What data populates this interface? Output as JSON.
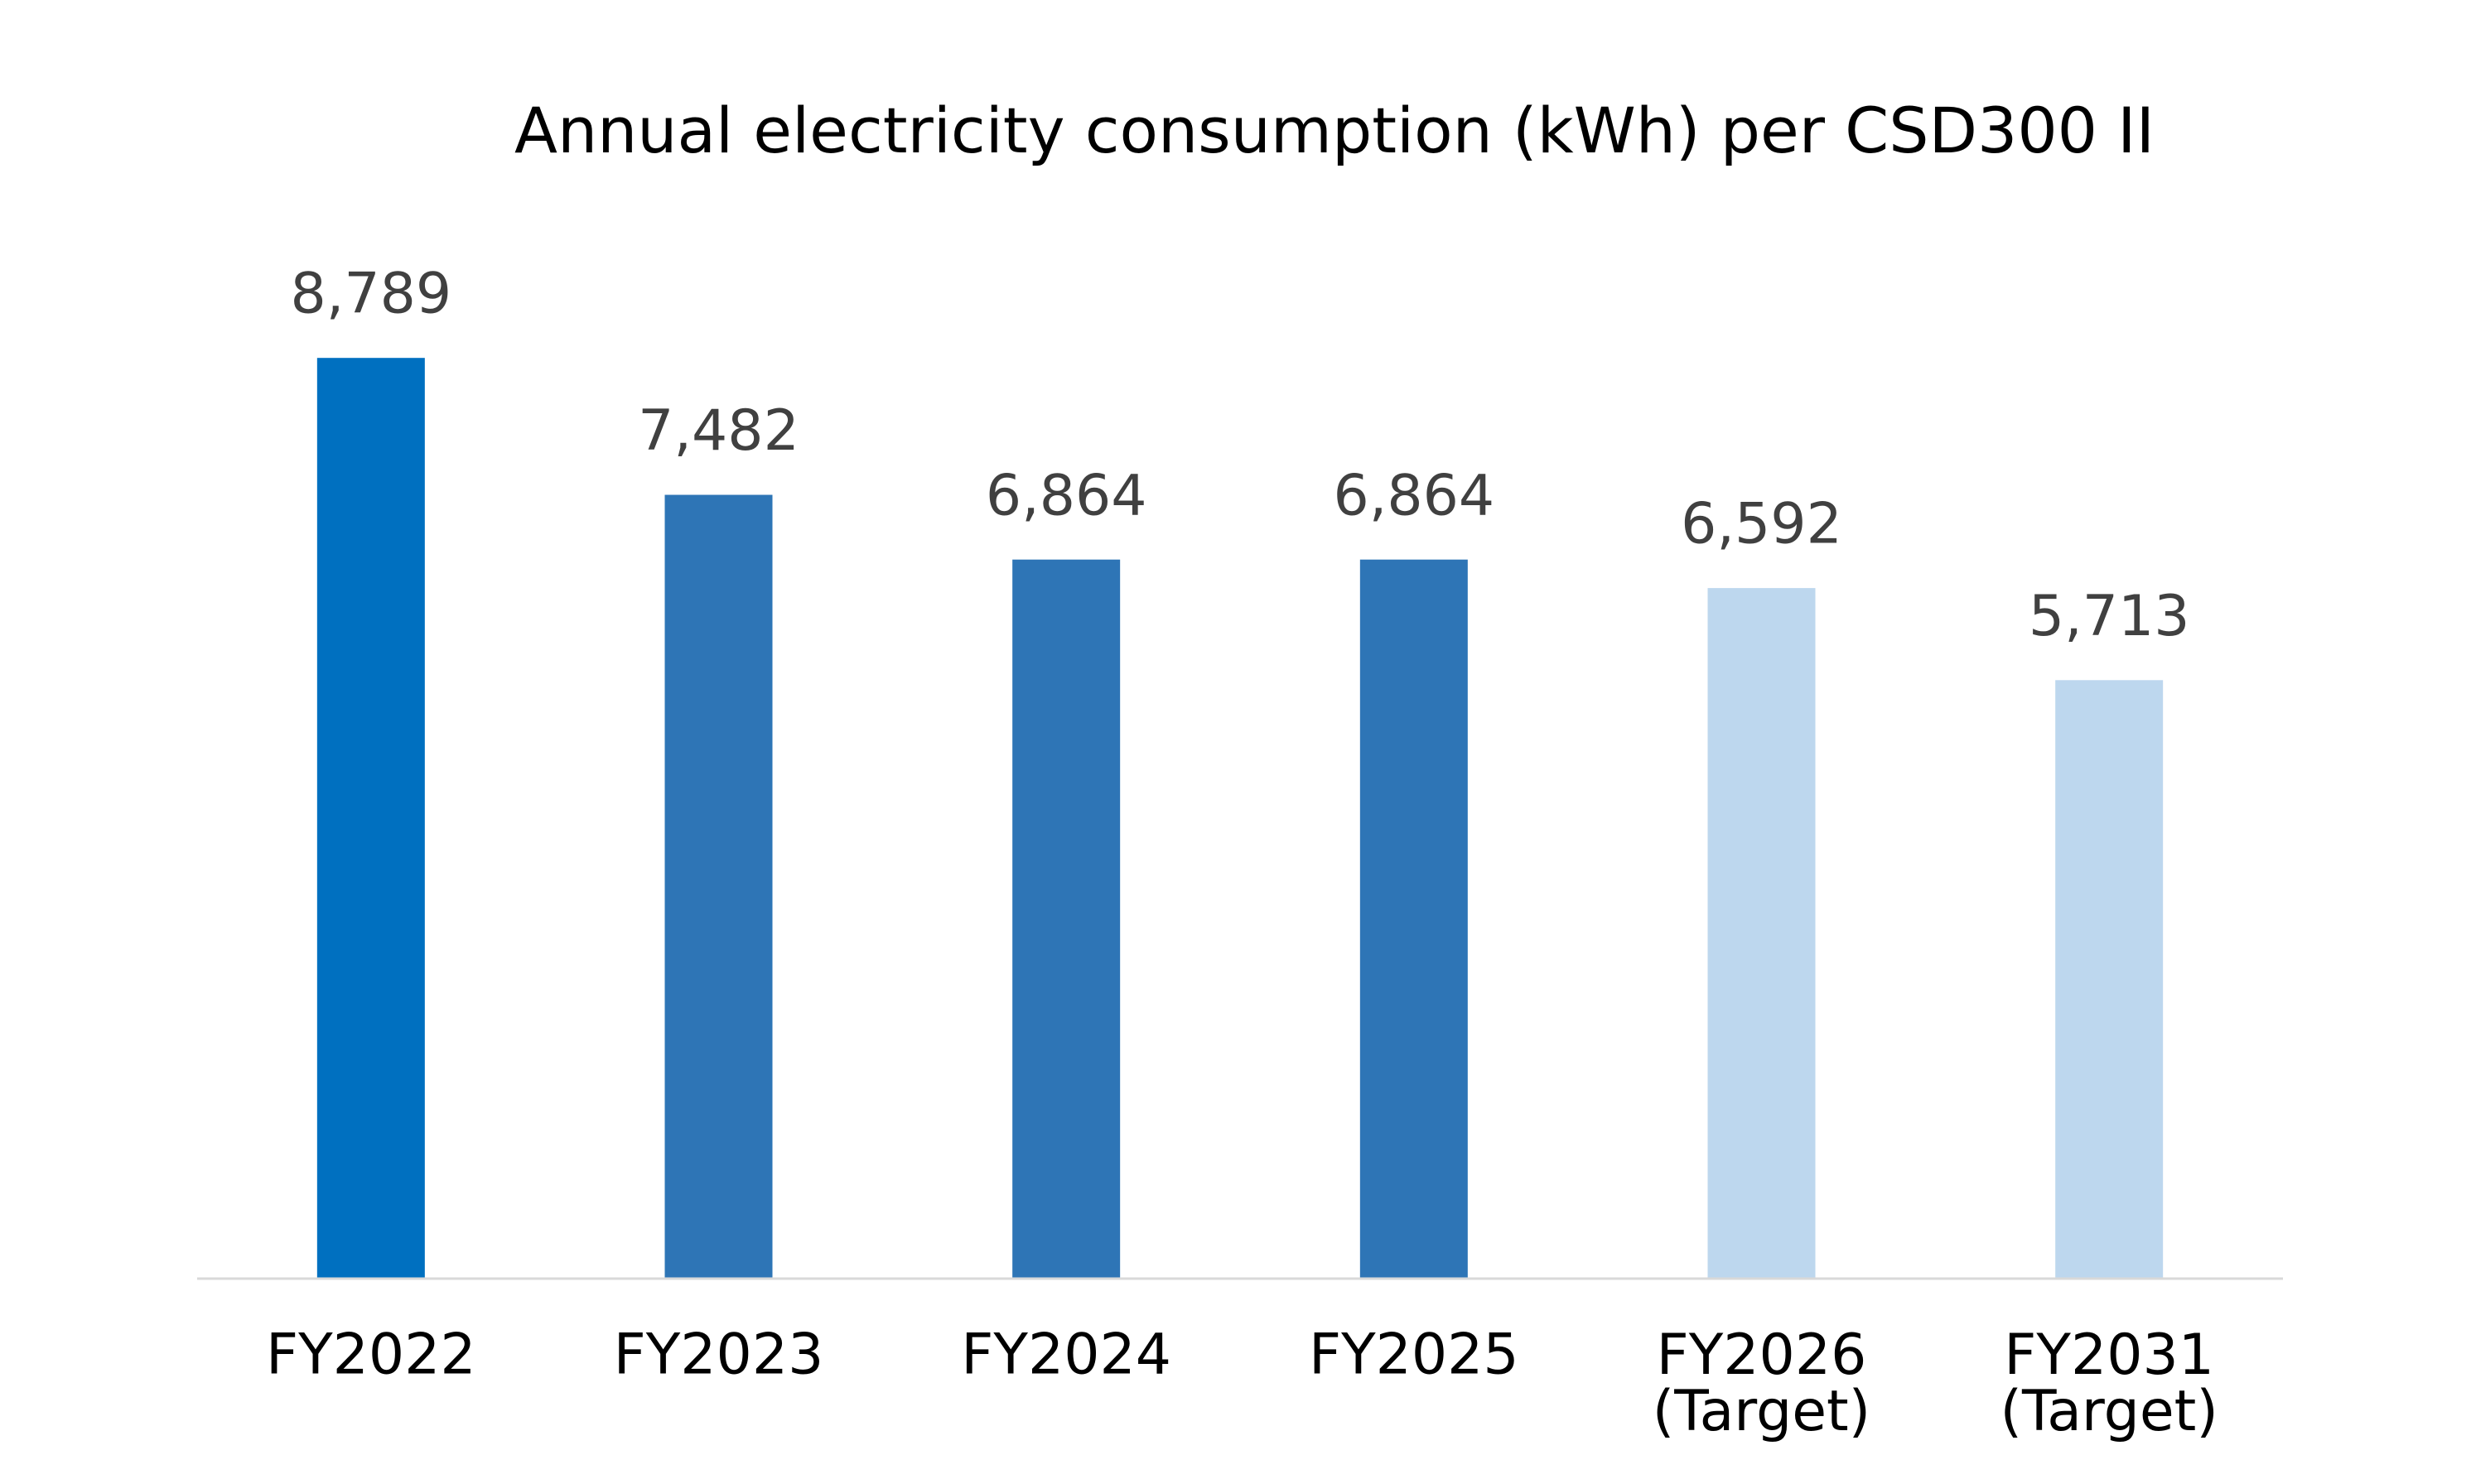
{
  "chart_data": {
    "type": "bar",
    "title": "Annual electricity consumption (kWh) per CSD300 II",
    "categories": [
      "FY2022",
      "FY2023",
      "FY2024",
      "FY2025",
      "FY2026 (Target)",
      "FY2031 (Target)"
    ],
    "values": [
      8789,
      7482,
      6864,
      6864,
      6592,
      5713
    ],
    "value_labels": [
      "8,789",
      "7,482",
      "6,864",
      "6,864",
      "6,592",
      "5,713"
    ],
    "colors": [
      "#0070c0",
      "#2e75b6",
      "#2e75b6",
      "#2e75b6",
      "#bdd7ee",
      "#bdd7ee"
    ],
    "ylim": [
      0,
      10000
    ]
  }
}
